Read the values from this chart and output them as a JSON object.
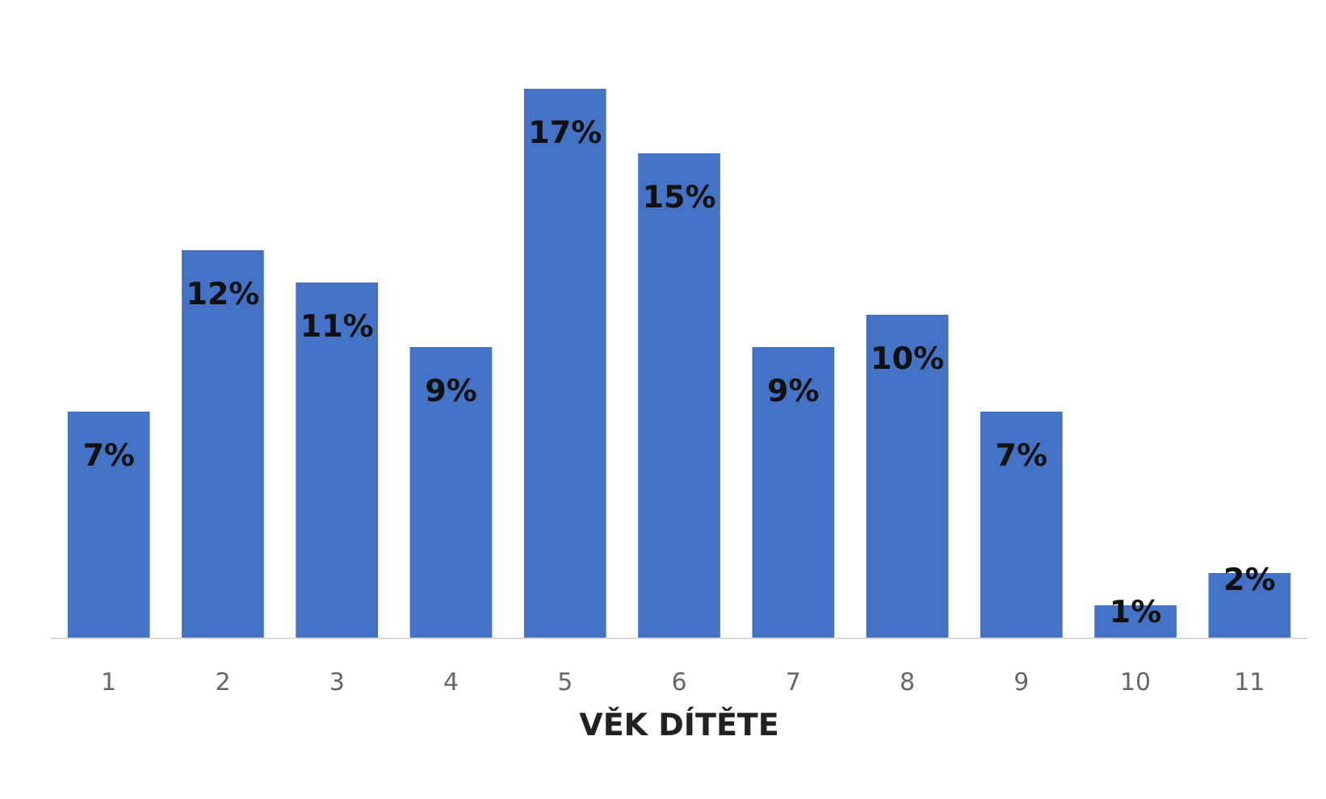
{
  "chart_data": {
    "type": "bar",
    "xlabel": "VĚK DÍTĚTE",
    "categories": [
      "1",
      "2",
      "3",
      "4",
      "5",
      "6",
      "7",
      "8",
      "9",
      "10",
      "11"
    ],
    "values": [
      7,
      12,
      11,
      9,
      17,
      15,
      9,
      10,
      7,
      1,
      2
    ],
    "value_labels": [
      "7%",
      "12%",
      "11%",
      "9%",
      "17%",
      "15%",
      "9%",
      "10%",
      "7%",
      "1%",
      "2%"
    ],
    "color": "#4472c4"
  }
}
